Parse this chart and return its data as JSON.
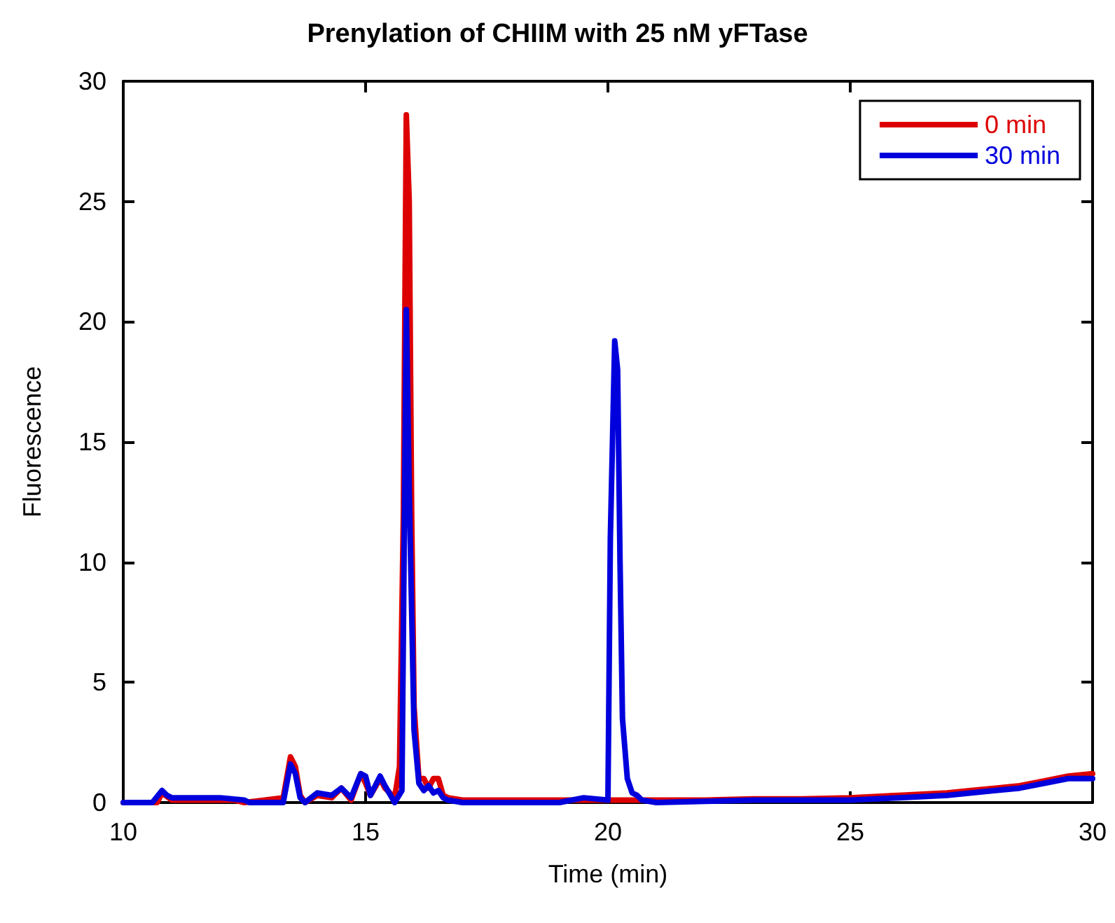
{
  "chart_data": {
    "type": "line",
    "title": "Prenylation of CHIIM with 25 nM yFTase",
    "xlabel": "Time (min)",
    "ylabel": "Fluorescence",
    "xlim": [
      10,
      30
    ],
    "xticks": [
      10,
      15,
      20,
      25,
      30
    ],
    "ylim": [
      0,
      30
    ],
    "yticks": [
      0,
      5,
      10,
      15,
      20,
      25,
      30
    ],
    "grid": false,
    "legend": "top right",
    "marker": "none",
    "line_style": "solid",
    "series": [
      {
        "name": "0 min",
        "color": "#dd0000",
        "x": [
          10,
          10.7,
          10.8,
          11,
          12.3,
          12.5,
          13.3,
          13.45,
          13.55,
          13.65,
          13.75,
          14,
          14.3,
          14.5,
          14.7,
          14.9,
          15.0,
          15.1,
          15.3,
          15.4,
          15.6,
          15.7,
          15.78,
          15.84,
          15.9,
          15.95,
          16.0,
          16.1,
          16.2,
          16.3,
          16.4,
          16.5,
          16.6,
          16.7,
          17,
          18,
          19,
          20,
          20.1,
          20.2,
          21,
          22,
          23,
          24,
          25,
          26,
          27,
          27.5,
          28,
          28.5,
          29,
          29.5,
          30
        ],
        "values": [
          0,
          0,
          0.4,
          0.1,
          0.1,
          0,
          0.2,
          1.9,
          1.5,
          0.3,
          0,
          0.3,
          0.2,
          0.6,
          0.1,
          1.2,
          0.8,
          0.3,
          1.0,
          0.6,
          0.2,
          1.5,
          12,
          28.6,
          25,
          12,
          4,
          1,
          1.0,
          0.6,
          1.0,
          1.0,
          0.3,
          0.2,
          0.1,
          0.1,
          0.1,
          0.1,
          0.1,
          0.1,
          0.1,
          0.1,
          0.15,
          0.15,
          0.2,
          0.3,
          0.4,
          0.5,
          0.6,
          0.7,
          0.9,
          1.1,
          1.2
        ]
      },
      {
        "name": "30 min",
        "color": "#0000dd",
        "x": [
          10,
          10.6,
          10.8,
          10.9,
          11,
          12,
          12.5,
          12.6,
          13.3,
          13.45,
          13.55,
          13.65,
          13.75,
          14,
          14.3,
          14.5,
          14.7,
          14.9,
          15.0,
          15.1,
          15.3,
          15.4,
          15.6,
          15.75,
          15.84,
          15.9,
          15.95,
          16.0,
          16.1,
          16.2,
          16.3,
          16.4,
          16.5,
          16.6,
          16.7,
          17,
          18,
          19,
          19.5,
          20,
          20.05,
          20.14,
          20.2,
          20.25,
          20.3,
          20.4,
          20.5,
          20.6,
          20.7,
          21,
          22,
          23,
          24,
          25,
          26,
          27,
          27.5,
          28,
          28.5,
          29,
          29.5,
          30
        ],
        "values": [
          0,
          0,
          0.5,
          0.3,
          0.2,
          0.2,
          0.1,
          0,
          0,
          1.6,
          1.2,
          0.2,
          0,
          0.4,
          0.3,
          0.6,
          0.2,
          1.2,
          1.1,
          0.3,
          1.1,
          0.7,
          0,
          0.5,
          20.5,
          13,
          8,
          3,
          0.8,
          0.5,
          0.7,
          0.4,
          0.5,
          0.2,
          0.1,
          0,
          0,
          0,
          0.2,
          0.1,
          11,
          19.2,
          18,
          10,
          3.5,
          1,
          0.4,
          0.3,
          0.1,
          0,
          0.05,
          0.1,
          0.1,
          0.1,
          0.2,
          0.3,
          0.4,
          0.5,
          0.6,
          0.8,
          1.0,
          1.0
        ]
      }
    ]
  }
}
